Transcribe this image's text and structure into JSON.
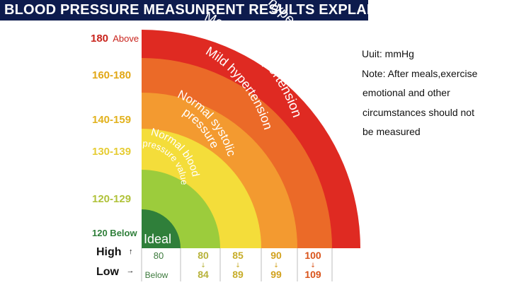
{
  "title": "BLOOD PRESSURE MEASUNRENT RESULTS EXPLAIN",
  "notes": {
    "unit": "Uuit: mmHg",
    "lines": [
      "Note: After meals,exercise",
      "emotional and other",
      "circumstances should not",
      "be measured"
    ]
  },
  "row_labels": {
    "high": "High",
    "low": "Low",
    "high_arrow": "↑",
    "low_arrow": "→"
  },
  "bands": [
    {
      "name": "Severe hypertension",
      "systolic_num": "180",
      "systolic_suffix": "Above",
      "diastolic_high": "100",
      "diastolic_low": "109",
      "color": "#df2a22",
      "label_color": "#c9241d",
      "col_color": "#d9531a"
    },
    {
      "name": "Moderate hypertension",
      "systolic": "160-180",
      "diastolic_high": "90",
      "diastolic_low": "99",
      "color": "#eb6a28",
      "label_color": "#e2a716",
      "col_color": "#d2a21e"
    },
    {
      "name": "Mild hypertension",
      "systolic": "140-159",
      "diastolic_high": "85",
      "diastolic_low": "89",
      "color": "#f39a30",
      "label_color": "#e2b21e",
      "col_color": "#c7ad2a"
    },
    {
      "name": "Normal systolic pressure",
      "name_lines": [
        "Normal systolic",
        "pressure"
      ],
      "systolic": "130-139",
      "diastolic_high": "80",
      "diastolic_low": "84",
      "color": "#f4dd3a",
      "label_color": "#e6cc33",
      "col_color": "#b7b23a"
    },
    {
      "name": "Normal blood pressure value",
      "name_lines": [
        "Normal blood",
        "pressure value"
      ],
      "systolic": "120-129",
      "color": "#9ccc3c",
      "label_color": "#b0c23a"
    },
    {
      "name": "Ideal",
      "systolic": "120 Below",
      "diastolic_high": "80",
      "diastolic_low": "Below",
      "color": "#2f7f3a",
      "label_color": "#2f7f3a",
      "col_color": "#3d7a3d"
    }
  ]
}
